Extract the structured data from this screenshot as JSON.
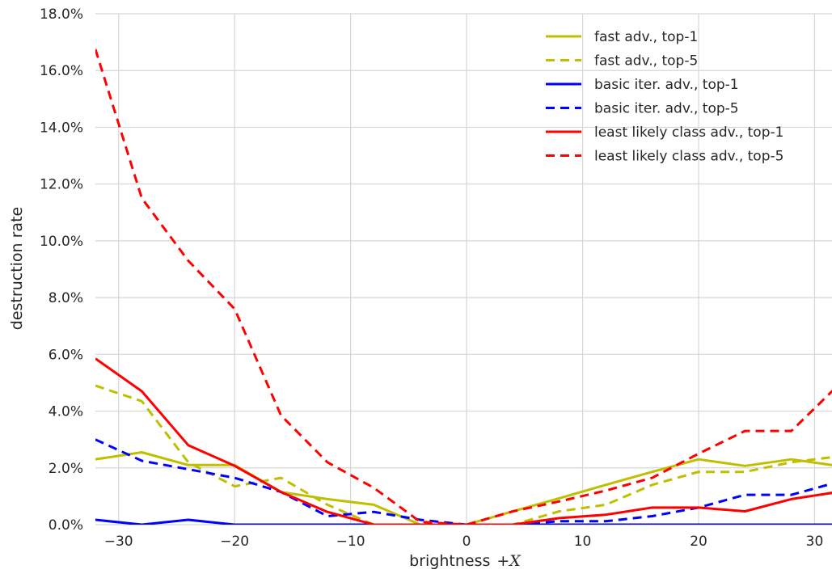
{
  "chart_data": {
    "type": "line",
    "xlabel": "brightness",
    "xlabel_math": "+X",
    "ylabel": "destruction rate",
    "xlim": [
      -32,
      31.5
    ],
    "ylim": [
      0,
      18
    ],
    "x_ticks": [
      -30,
      -20,
      -10,
      0,
      10,
      20,
      30
    ],
    "x_tick_labels": [
      "−30",
      "−20",
      "−10",
      "0",
      "10",
      "20",
      "30"
    ],
    "y_ticks": [
      0,
      2,
      4,
      6,
      8,
      10,
      12,
      14,
      16,
      18
    ],
    "y_tick_labels": [
      "0.0%",
      "2.0%",
      "4.0%",
      "6.0%",
      "8.0%",
      "10.0%",
      "12.0%",
      "14.0%",
      "16.0%",
      "18.0%"
    ],
    "grid": true,
    "legend_position": "top-right",
    "x": [
      -32,
      -28,
      -24,
      -20,
      -16,
      -12,
      -8,
      -4,
      0,
      4,
      8,
      12,
      16,
      20,
      24,
      28,
      32
    ],
    "series": [
      {
        "name": "fast adv., top-1",
        "color": "#bfbf00",
        "dash": "solid",
        "values": [
          2.3,
          2.55,
          2.1,
          2.1,
          1.15,
          0.9,
          0.7,
          0.0,
          0.0,
          0.47,
          0.93,
          1.4,
          1.86,
          2.3,
          2.07,
          2.3,
          2.07
        ]
      },
      {
        "name": "fast adv., top-5",
        "color": "#bfbf00",
        "dash": "dashed",
        "values": [
          4.9,
          4.35,
          2.2,
          1.35,
          1.65,
          0.7,
          0.0,
          0.0,
          0.0,
          0.0,
          0.47,
          0.7,
          1.4,
          1.86,
          1.86,
          2.2,
          2.4
        ]
      },
      {
        "name": "basic iter. adv., top-1",
        "color": "#0000ff",
        "dash": "solid",
        "values": [
          0.17,
          0.0,
          0.17,
          0.0,
          0.0,
          0.0,
          0.0,
          0.0,
          0.0,
          0.0,
          0.0,
          0.0,
          0.0,
          0.0,
          0.0,
          0.0,
          0.0
        ]
      },
      {
        "name": "basic iter. adv., top-5",
        "color": "#0000ff",
        "dash": "dashed",
        "values": [
          3.0,
          2.25,
          1.95,
          1.65,
          1.15,
          0.3,
          0.45,
          0.17,
          0.0,
          0.0,
          0.12,
          0.12,
          0.3,
          0.6,
          1.05,
          1.05,
          1.5
        ]
      },
      {
        "name": "least likely class adv., top-1",
        "color": "#ff0000",
        "dash": "solid",
        "values": [
          5.85,
          4.7,
          2.8,
          2.07,
          1.15,
          0.45,
          0.0,
          0.0,
          0.0,
          0.0,
          0.23,
          0.35,
          0.6,
          0.6,
          0.47,
          0.9,
          1.15
        ]
      },
      {
        "name": "least likely class adv., top-5",
        "color": "#ff0000",
        "dash": "dashed",
        "values": [
          16.75,
          11.5,
          9.3,
          7.6,
          3.85,
          2.2,
          1.3,
          0.1,
          0.0,
          0.47,
          0.82,
          1.2,
          1.65,
          2.5,
          3.3,
          3.3,
          4.9
        ]
      }
    ]
  }
}
